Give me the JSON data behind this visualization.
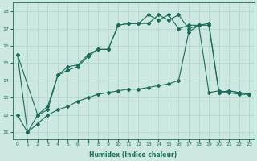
{
  "xlabel": "Humidex (Indice chaleur)",
  "bg_color": "#cce8e0",
  "line_color": "#1a6b5a",
  "grid_color": "#aad4cc",
  "xlim": [
    -0.5,
    23.5
  ],
  "ylim": [
    10.6,
    18.5
  ],
  "yticks": [
    11,
    12,
    13,
    14,
    15,
    16,
    17,
    18
  ],
  "xticks": [
    0,
    1,
    2,
    3,
    4,
    5,
    6,
    7,
    8,
    9,
    10,
    11,
    12,
    13,
    14,
    15,
    16,
    17,
    18,
    19,
    20,
    21,
    22,
    23
  ],
  "line1_x": [
    0,
    1,
    2,
    3,
    4,
    5,
    6,
    7,
    8,
    9,
    10,
    11,
    12,
    13,
    14,
    15,
    16,
    17,
    18,
    19,
    20,
    21,
    22,
    23
  ],
  "line1_y": [
    15.5,
    11.0,
    12.0,
    12.5,
    14.3,
    14.8,
    14.9,
    15.5,
    15.8,
    15.8,
    17.2,
    17.3,
    17.3,
    17.3,
    17.8,
    17.5,
    17.8,
    17.0,
    17.2,
    17.2,
    13.3,
    13.4,
    13.3,
    13.2
  ],
  "line2_x": [
    0,
    2,
    3,
    4,
    5,
    6,
    7,
    8,
    9,
    10,
    11,
    12,
    13,
    14,
    15,
    16,
    17,
    18,
    19,
    20,
    21,
    22,
    23
  ],
  "line2_y": [
    15.5,
    12.0,
    12.3,
    14.3,
    14.6,
    14.8,
    15.4,
    15.8,
    15.8,
    17.2,
    17.3,
    17.3,
    17.8,
    17.5,
    17.8,
    17.0,
    17.2,
    17.2,
    13.3,
    13.4,
    13.3,
    13.2,
    13.2
  ],
  "line3_x": [
    0,
    1,
    2,
    3,
    4,
    5,
    6,
    7,
    8,
    9,
    10,
    11,
    12,
    13,
    14,
    15,
    16,
    17,
    18,
    19,
    20,
    21,
    22,
    23
  ],
  "line3_y": [
    12.0,
    11.0,
    11.5,
    12.0,
    12.3,
    12.5,
    12.8,
    13.0,
    13.2,
    13.3,
    13.4,
    13.5,
    13.5,
    13.6,
    13.7,
    13.8,
    14.0,
    16.8,
    17.2,
    17.3,
    13.3,
    13.4,
    13.3,
    13.2
  ],
  "xlabel_fontsize": 5.5,
  "tick_fontsize": 4.5
}
